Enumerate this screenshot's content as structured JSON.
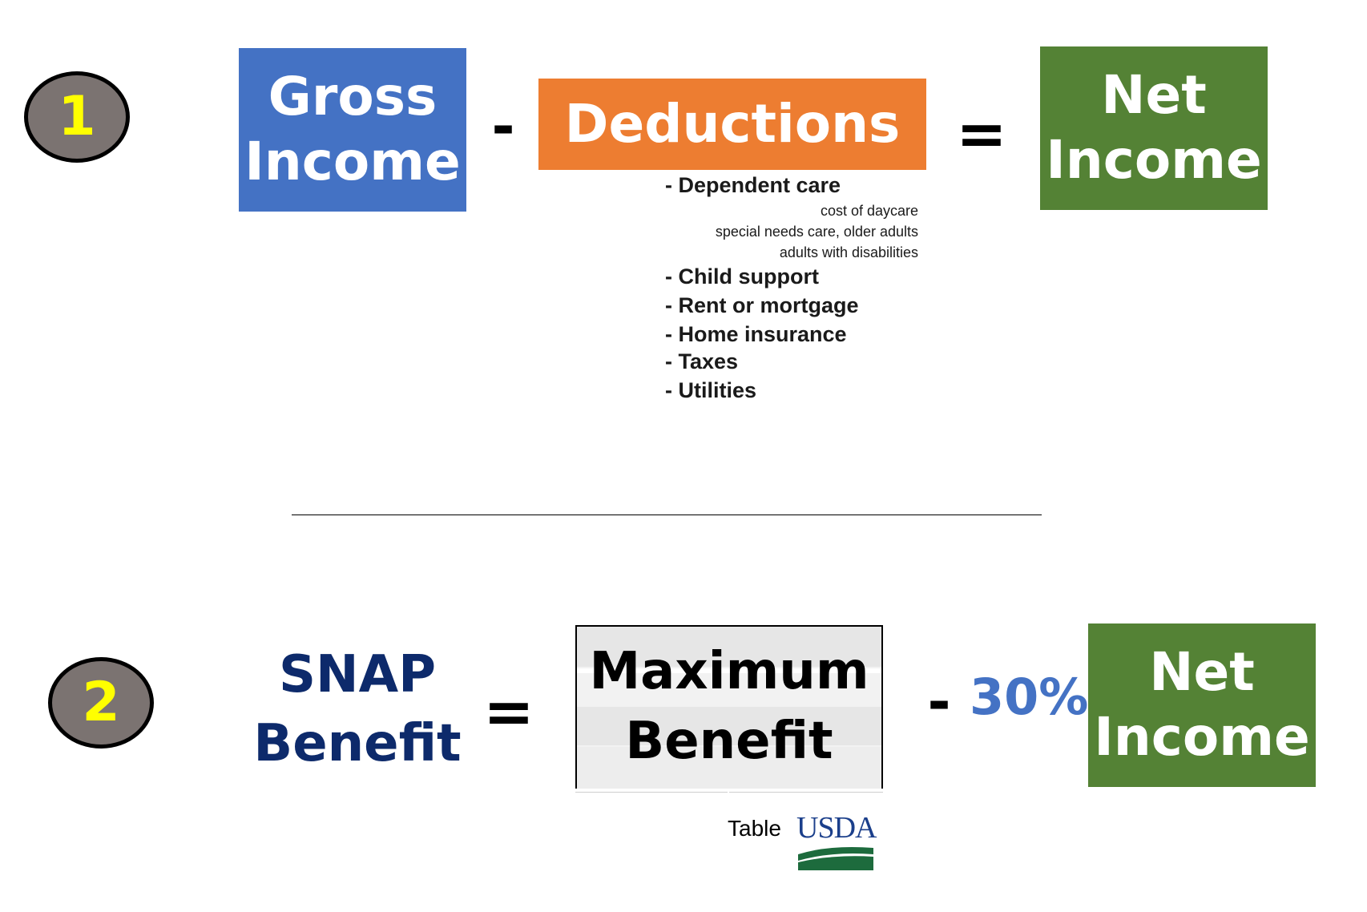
{
  "step1": {
    "number": "1",
    "gross_income": {
      "line1": "Gross",
      "line2": "Income"
    },
    "minus": "-",
    "deductions": {
      "label": "Deductions",
      "items": [
        {
          "text": "- Dependent care",
          "subs": [
            "cost of daycare",
            "special needs care, older adults",
            "adults with disabilities"
          ]
        },
        {
          "text": "- Child support"
        },
        {
          "text": "- Rent or mortgage"
        },
        {
          "text": "- Home insurance"
        },
        {
          "text": "- Taxes"
        },
        {
          "text": "- Utilities"
        }
      ]
    },
    "equals": "=",
    "net_income": {
      "line1": "Net",
      "line2": "Income"
    }
  },
  "step2": {
    "number": "2",
    "snap_benefit": {
      "line1": "SNAP",
      "line2": "Benefit"
    },
    "equals": "=",
    "maximum_benefit": {
      "line1": "Maximum",
      "line2": "Benefit"
    },
    "minus": "-",
    "percent": "30%",
    "net_income": {
      "line1": "Net",
      "line2": "Income"
    },
    "table_label": "Table",
    "usda_logo_text": "USDA"
  },
  "colors": {
    "gross_blue": "#4472c4",
    "deductions_orange": "#ed7d31",
    "net_green": "#548235",
    "snap_navy": "#0d2a6b",
    "percent_blue": "#4472c4",
    "circle_gray": "#7b7371",
    "circle_number": "#ffff00",
    "usda_navy": "#1b3f8b",
    "usda_green": "#1d6b3d"
  }
}
